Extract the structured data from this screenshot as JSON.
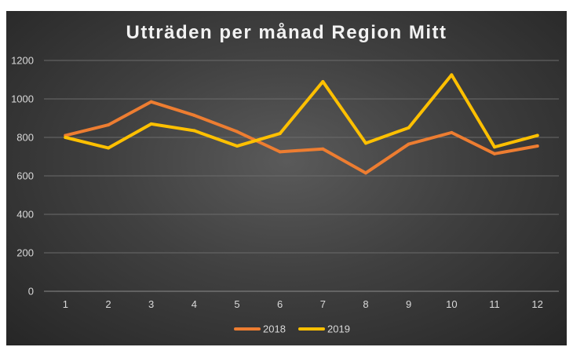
{
  "chart_data": {
    "type": "line",
    "title": "Utträden per månad Region Mitt",
    "xlabel": "",
    "ylabel": "",
    "categories": [
      "1",
      "2",
      "3",
      "4",
      "5",
      "6",
      "7",
      "8",
      "9",
      "10",
      "11",
      "12"
    ],
    "ylim": [
      0,
      1200
    ],
    "yticks": [
      0,
      200,
      400,
      600,
      800,
      1000,
      1200
    ],
    "grid": true,
    "legend_position": "bottom",
    "series": [
      {
        "name": "2018",
        "color": "#ed7d31",
        "values": [
          810,
          865,
          985,
          915,
          830,
          725,
          740,
          615,
          765,
          825,
          715,
          755
        ]
      },
      {
        "name": "2019",
        "color": "#ffc000",
        "values": [
          800,
          745,
          870,
          835,
          755,
          820,
          1090,
          770,
          850,
          1125,
          750,
          810
        ]
      }
    ]
  }
}
